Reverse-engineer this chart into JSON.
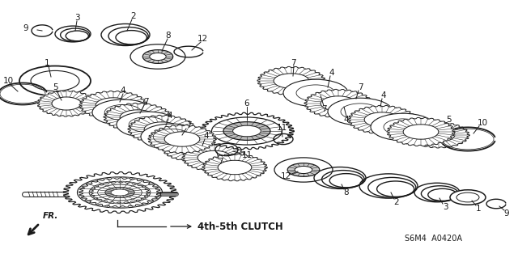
{
  "label_clutch": "4th-5th CLUTCH",
  "label_fr": "FR.",
  "label_code": "S6M4  A0420A",
  "bg_color": "#ffffff",
  "line_color": "#1a1a1a",
  "fig_width": 6.4,
  "fig_height": 3.19,
  "dpi": 100
}
